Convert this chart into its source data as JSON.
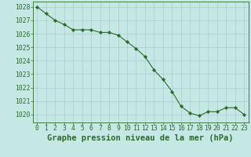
{
  "x": [
    0,
    1,
    2,
    3,
    4,
    5,
    6,
    7,
    8,
    9,
    10,
    11,
    12,
    13,
    14,
    15,
    16,
    17,
    18,
    19,
    20,
    21,
    22,
    23
  ],
  "y": [
    1028.0,
    1027.5,
    1027.0,
    1026.7,
    1026.3,
    1026.3,
    1026.3,
    1026.1,
    1026.1,
    1025.9,
    1025.4,
    1024.9,
    1024.3,
    1023.3,
    1022.6,
    1021.7,
    1020.6,
    1020.1,
    1019.9,
    1020.2,
    1020.2,
    1020.5,
    1020.5,
    1020.0
  ],
  "xlabel": "Graphe pression niveau de la mer (hPa)",
  "ylim": [
    1019.4,
    1028.4
  ],
  "yticks": [
    1020,
    1021,
    1022,
    1023,
    1024,
    1025,
    1026,
    1027,
    1028
  ],
  "xticks": [
    0,
    1,
    2,
    3,
    4,
    5,
    6,
    7,
    8,
    9,
    10,
    11,
    12,
    13,
    14,
    15,
    16,
    17,
    18,
    19,
    20,
    21,
    22,
    23
  ],
  "line_color": "#2d6a2d",
  "bg_color": "#c5e8e5",
  "grid_color": "#aaccca",
  "xlabel_fontsize": 7.5,
  "tick_fontsize": 5.8,
  "xlabel_fontweight": "bold"
}
